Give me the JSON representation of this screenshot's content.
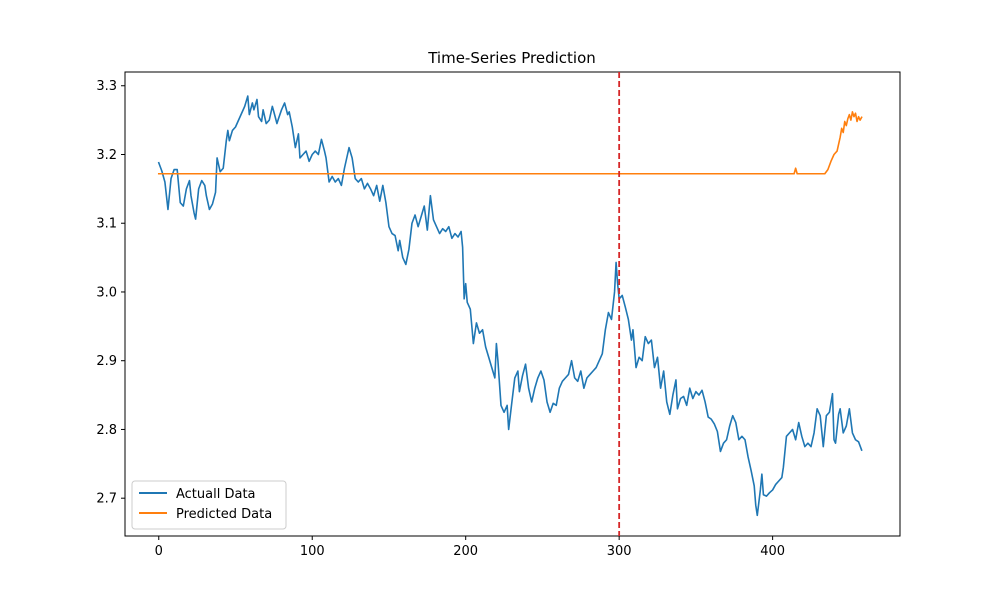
{
  "chart_data": {
    "type": "line",
    "title": "Time-Series Prediction",
    "xlabel": "",
    "ylabel": "",
    "xlim": [
      -22,
      483
    ],
    "ylim": [
      2.645,
      3.32
    ],
    "x_ticks": [
      0,
      100,
      200,
      300,
      400
    ],
    "y_ticks": [
      2.7,
      2.8,
      2.9,
      3.0,
      3.1,
      3.2,
      3.3
    ],
    "y_tick_labels": [
      "2.7",
      "2.8",
      "2.9",
      "3.0",
      "3.1",
      "3.2",
      "3.3"
    ],
    "grid": false,
    "legend_position": "lower-left",
    "split_line": {
      "x": 300,
      "color": "#d62728",
      "style": "dashed"
    },
    "series": [
      {
        "name": "Actuall Data",
        "color": "#1f77b4",
        "points": [
          [
            0,
            3.188
          ],
          [
            2,
            3.176
          ],
          [
            4,
            3.16
          ],
          [
            5,
            3.14
          ],
          [
            6,
            3.12
          ],
          [
            8,
            3.165
          ],
          [
            10,
            3.178
          ],
          [
            12,
            3.178
          ],
          [
            14,
            3.13
          ],
          [
            16,
            3.125
          ],
          [
            18,
            3.15
          ],
          [
            20,
            3.162
          ],
          [
            21,
            3.14
          ],
          [
            23,
            3.115
          ],
          [
            24,
            3.106
          ],
          [
            26,
            3.15
          ],
          [
            28,
            3.162
          ],
          [
            30,
            3.155
          ],
          [
            31,
            3.14
          ],
          [
            33,
            3.12
          ],
          [
            35,
            3.128
          ],
          [
            37,
            3.145
          ],
          [
            38,
            3.195
          ],
          [
            40,
            3.175
          ],
          [
            42,
            3.18
          ],
          [
            44,
            3.22
          ],
          [
            45,
            3.235
          ],
          [
            46,
            3.22
          ],
          [
            48,
            3.235
          ],
          [
            50,
            3.24
          ],
          [
            52,
            3.25
          ],
          [
            54,
            3.26
          ],
          [
            56,
            3.27
          ],
          [
            58,
            3.285
          ],
          [
            59,
            3.258
          ],
          [
            61,
            3.275
          ],
          [
            62,
            3.265
          ],
          [
            64,
            3.28
          ],
          [
            65,
            3.255
          ],
          [
            67,
            3.248
          ],
          [
            68,
            3.265
          ],
          [
            70,
            3.245
          ],
          [
            72,
            3.25
          ],
          [
            74,
            3.27
          ],
          [
            75,
            3.262
          ],
          [
            77,
            3.245
          ],
          [
            78,
            3.252
          ],
          [
            80,
            3.265
          ],
          [
            82,
            3.275
          ],
          [
            84,
            3.258
          ],
          [
            85,
            3.262
          ],
          [
            87,
            3.24
          ],
          [
            89,
            3.21
          ],
          [
            91,
            3.23
          ],
          [
            92,
            3.195
          ],
          [
            94,
            3.2
          ],
          [
            96,
            3.205
          ],
          [
            98,
            3.19
          ],
          [
            100,
            3.2
          ],
          [
            102,
            3.205
          ],
          [
            104,
            3.2
          ],
          [
            106,
            3.222
          ],
          [
            108,
            3.205
          ],
          [
            109,
            3.195
          ],
          [
            111,
            3.16
          ],
          [
            113,
            3.168
          ],
          [
            115,
            3.16
          ],
          [
            117,
            3.165
          ],
          [
            119,
            3.155
          ],
          [
            121,
            3.18
          ],
          [
            123,
            3.2
          ],
          [
            124,
            3.21
          ],
          [
            126,
            3.195
          ],
          [
            128,
            3.165
          ],
          [
            130,
            3.16
          ],
          [
            132,
            3.165
          ],
          [
            134,
            3.15
          ],
          [
            136,
            3.158
          ],
          [
            138,
            3.15
          ],
          [
            140,
            3.14
          ],
          [
            142,
            3.155
          ],
          [
            144,
            3.132
          ],
          [
            146,
            3.155
          ],
          [
            148,
            3.13
          ],
          [
            150,
            3.095
          ],
          [
            152,
            3.085
          ],
          [
            154,
            3.082
          ],
          [
            156,
            3.06
          ],
          [
            157,
            3.075
          ],
          [
            159,
            3.05
          ],
          [
            161,
            3.04
          ],
          [
            163,
            3.062
          ],
          [
            165,
            3.1
          ],
          [
            167,
            3.112
          ],
          [
            169,
            3.095
          ],
          [
            171,
            3.11
          ],
          [
            173,
            3.125
          ],
          [
            175,
            3.09
          ],
          [
            177,
            3.14
          ],
          [
            179,
            3.105
          ],
          [
            181,
            3.095
          ],
          [
            183,
            3.085
          ],
          [
            185,
            3.092
          ],
          [
            187,
            3.088
          ],
          [
            189,
            3.095
          ],
          [
            191,
            3.078
          ],
          [
            193,
            3.085
          ],
          [
            195,
            3.08
          ],
          [
            197,
            3.088
          ],
          [
            198,
            3.065
          ],
          [
            199,
            2.99
          ],
          [
            200,
            3.012
          ],
          [
            201,
            2.985
          ],
          [
            203,
            2.975
          ],
          [
            205,
            2.925
          ],
          [
            207,
            2.955
          ],
          [
            209,
            2.94
          ],
          [
            211,
            2.945
          ],
          [
            213,
            2.92
          ],
          [
            215,
            2.905
          ],
          [
            217,
            2.89
          ],
          [
            219,
            2.875
          ],
          [
            220,
            2.925
          ],
          [
            221,
            2.9
          ],
          [
            223,
            2.835
          ],
          [
            225,
            2.825
          ],
          [
            227,
            2.835
          ],
          [
            228,
            2.8
          ],
          [
            230,
            2.838
          ],
          [
            232,
            2.875
          ],
          [
            234,
            2.885
          ],
          [
            235,
            2.855
          ],
          [
            237,
            2.878
          ],
          [
            239,
            2.895
          ],
          [
            241,
            2.86
          ],
          [
            243,
            2.84
          ],
          [
            245,
            2.86
          ],
          [
            247,
            2.875
          ],
          [
            249,
            2.885
          ],
          [
            251,
            2.872
          ],
          [
            253,
            2.84
          ],
          [
            255,
            2.825
          ],
          [
            257,
            2.838
          ],
          [
            259,
            2.835
          ],
          [
            261,
            2.86
          ],
          [
            263,
            2.87
          ],
          [
            265,
            2.875
          ],
          [
            267,
            2.88
          ],
          [
            269,
            2.9
          ],
          [
            271,
            2.875
          ],
          [
            273,
            2.87
          ],
          [
            275,
            2.885
          ],
          [
            277,
            2.86
          ],
          [
            279,
            2.875
          ],
          [
            281,
            2.88
          ],
          [
            283,
            2.885
          ],
          [
            285,
            2.89
          ],
          [
            287,
            2.9
          ],
          [
            289,
            2.91
          ],
          [
            291,
            2.945
          ],
          [
            293,
            2.97
          ],
          [
            295,
            2.96
          ],
          [
            297,
            3.0
          ],
          [
            298,
            3.043
          ],
          [
            299,
            3.012
          ],
          [
            300,
            2.99
          ],
          [
            302,
            2.995
          ],
          [
            304,
            2.978
          ],
          [
            306,
            2.96
          ],
          [
            308,
            2.93
          ],
          [
            309,
            2.945
          ],
          [
            311,
            2.89
          ],
          [
            313,
            2.905
          ],
          [
            315,
            2.9
          ],
          [
            317,
            2.935
          ],
          [
            319,
            2.925
          ],
          [
            321,
            2.93
          ],
          [
            323,
            2.89
          ],
          [
            325,
            2.905
          ],
          [
            327,
            2.86
          ],
          [
            329,
            2.885
          ],
          [
            331,
            2.84
          ],
          [
            333,
            2.822
          ],
          [
            335,
            2.85
          ],
          [
            337,
            2.872
          ],
          [
            338,
            2.83
          ],
          [
            340,
            2.845
          ],
          [
            342,
            2.848
          ],
          [
            344,
            2.835
          ],
          [
            346,
            2.86
          ],
          [
            348,
            2.845
          ],
          [
            350,
            2.855
          ],
          [
            352,
            2.85
          ],
          [
            354,
            2.857
          ],
          [
            356,
            2.84
          ],
          [
            358,
            2.818
          ],
          [
            360,
            2.815
          ],
          [
            362,
            2.808
          ],
          [
            364,
            2.797
          ],
          [
            366,
            2.768
          ],
          [
            368,
            2.78
          ],
          [
            370,
            2.785
          ],
          [
            372,
            2.805
          ],
          [
            374,
            2.82
          ],
          [
            376,
            2.81
          ],
          [
            378,
            2.785
          ],
          [
            380,
            2.79
          ],
          [
            382,
            2.785
          ],
          [
            384,
            2.76
          ],
          [
            386,
            2.74
          ],
          [
            388,
            2.718
          ],
          [
            389,
            2.69
          ],
          [
            390,
            2.675
          ],
          [
            392,
            2.712
          ],
          [
            393,
            2.735
          ],
          [
            394,
            2.705
          ],
          [
            396,
            2.703
          ],
          [
            398,
            2.708
          ],
          [
            400,
            2.712
          ],
          [
            402,
            2.72
          ],
          [
            404,
            2.725
          ],
          [
            406,
            2.73
          ],
          [
            407,
            2.745
          ],
          [
            409,
            2.79
          ],
          [
            411,
            2.795
          ],
          [
            413,
            2.8
          ],
          [
            415,
            2.785
          ],
          [
            417,
            2.81
          ],
          [
            419,
            2.79
          ],
          [
            421,
            2.775
          ],
          [
            423,
            2.78
          ],
          [
            425,
            2.775
          ],
          [
            427,
            2.795
          ],
          [
            429,
            2.83
          ],
          [
            431,
            2.82
          ],
          [
            433,
            2.775
          ],
          [
            435,
            2.82
          ],
          [
            437,
            2.825
          ],
          [
            439,
            2.852
          ],
          [
            440,
            2.785
          ],
          [
            441,
            2.78
          ],
          [
            443,
            2.822
          ],
          [
            444,
            2.83
          ],
          [
            446,
            2.795
          ],
          [
            448,
            2.805
          ],
          [
            450,
            2.83
          ],
          [
            452,
            2.795
          ],
          [
            454,
            2.785
          ],
          [
            456,
            2.782
          ],
          [
            458,
            2.77
          ]
        ]
      },
      {
        "name": "Predicted Data",
        "color": "#ff7f0e",
        "points": [
          [
            0,
            3.172
          ],
          [
            414,
            3.172
          ],
          [
            415,
            3.18
          ],
          [
            416,
            3.172
          ],
          [
            434,
            3.172
          ],
          [
            436,
            3.178
          ],
          [
            438,
            3.19
          ],
          [
            440,
            3.2
          ],
          [
            442,
            3.205
          ],
          [
            443,
            3.215
          ],
          [
            444,
            3.225
          ],
          [
            445,
            3.238
          ],
          [
            446,
            3.232
          ],
          [
            447,
            3.248
          ],
          [
            448,
            3.242
          ],
          [
            449,
            3.252
          ],
          [
            450,
            3.258
          ],
          [
            451,
            3.25
          ],
          [
            452,
            3.262
          ],
          [
            453,
            3.255
          ],
          [
            454,
            3.26
          ],
          [
            455,
            3.248
          ],
          [
            456,
            3.255
          ],
          [
            457,
            3.25
          ],
          [
            458,
            3.254
          ]
        ]
      }
    ]
  }
}
